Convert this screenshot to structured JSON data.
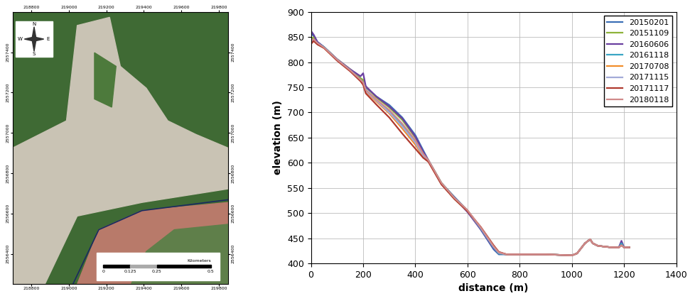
{
  "map": {
    "xticks": [
      218800,
      219000,
      219200,
      219400,
      219600,
      219800
    ],
    "yticks": [
      2556400,
      2556600,
      2556800,
      2557000,
      2557200,
      2557400
    ],
    "xlim": [
      218700,
      219850
    ],
    "ylim": [
      2556250,
      2557600
    ],
    "compass": [
      "N",
      "S",
      "W",
      "E"
    ],
    "scale_bar": {
      "unit": "Kilometers",
      "ticks": [
        0,
        0.125,
        0.25,
        0.5
      ]
    }
  },
  "chart_data": {
    "type": "line",
    "x_label": "distance (m)",
    "y_label": "elevation (m)",
    "xlim": [
      0,
      1400
    ],
    "xticks": [
      0,
      200,
      400,
      600,
      800,
      1000,
      1200,
      1400
    ],
    "ylim": [
      400,
      900
    ],
    "yticks": [
      400,
      450,
      500,
      550,
      600,
      650,
      700,
      750,
      800,
      850,
      900
    ],
    "grid": true,
    "legend": "upper right",
    "x": [
      0,
      10,
      25,
      50,
      100,
      150,
      190,
      200,
      210,
      250,
      300,
      350,
      400,
      430,
      450,
      500,
      550,
      600,
      650,
      700,
      720,
      750,
      800,
      900,
      1000,
      1020,
      1050,
      1070,
      1080,
      1100,
      1150,
      1180,
      1190,
      1200,
      1220
    ],
    "series": [
      {
        "name": "20150201",
        "color": "#3b6fb6",
        "values": [
          858,
          852,
          840,
          830,
          805,
          785,
          768,
          762,
          750,
          732,
          715,
          690,
          655,
          625,
          605,
          560,
          532,
          505,
          468,
          428,
          418,
          418,
          418,
          418,
          416,
          420,
          440,
          448,
          440,
          435,
          432,
          432,
          438,
          432,
          432
        ]
      },
      {
        "name": "20151109",
        "color": "#8db33a",
        "values": [
          845,
          850,
          838,
          830,
          806,
          786,
          768,
          765,
          752,
          730,
          710,
          685,
          650,
          620,
          605,
          560,
          530,
          505,
          470,
          432,
          420,
          418,
          418,
          418,
          416,
          420,
          440,
          448,
          440,
          435,
          432,
          432,
          436,
          432,
          432
        ]
      },
      {
        "name": "20160606",
        "color": "#6a3fa0",
        "values": [
          862,
          855,
          840,
          830,
          806,
          786,
          772,
          778,
          752,
          732,
          712,
          688,
          652,
          622,
          605,
          558,
          530,
          502,
          468,
          430,
          420,
          418,
          418,
          418,
          416,
          420,
          440,
          448,
          440,
          435,
          432,
          432,
          445,
          432,
          432
        ]
      },
      {
        "name": "20161118",
        "color": "#3aa5c4",
        "values": [
          840,
          845,
          838,
          830,
          805,
          784,
          765,
          760,
          745,
          725,
          702,
          675,
          642,
          615,
          604,
          558,
          528,
          505,
          470,
          432,
          420,
          418,
          418,
          418,
          416,
          420,
          440,
          448,
          440,
          435,
          432,
          432,
          440,
          432,
          432
        ]
      },
      {
        "name": "20170708",
        "color": "#f28e2b",
        "values": [
          838,
          843,
          836,
          828,
          804,
          783,
          764,
          758,
          742,
          722,
          698,
          668,
          636,
          612,
          603,
          558,
          528,
          504,
          472,
          435,
          422,
          418,
          418,
          418,
          416,
          420,
          440,
          448,
          440,
          435,
          432,
          432,
          436,
          432,
          432
        ]
      },
      {
        "name": "20171115",
        "color": "#a3abd8",
        "values": [
          840,
          844,
          837,
          829,
          805,
          784,
          765,
          759,
          743,
          724,
          700,
          672,
          640,
          614,
          604,
          559,
          529,
          505,
          471,
          433,
          421,
          418,
          418,
          418,
          416,
          420,
          440,
          448,
          440,
          435,
          432,
          432,
          436,
          432,
          432
        ]
      },
      {
        "name": "20171117",
        "color": "#b03a2e",
        "values": [
          836,
          842,
          835,
          828,
          803,
          782,
          762,
          755,
          738,
          716,
          690,
          658,
          628,
          610,
          602,
          557,
          528,
          504,
          473,
          436,
          423,
          418,
          418,
          418,
          416,
          420,
          440,
          448,
          440,
          435,
          432,
          432,
          436,
          432,
          432
        ]
      },
      {
        "name": "20180118",
        "color": "#d08a8a",
        "values": [
          842,
          846,
          838,
          829,
          805,
          784,
          765,
          760,
          745,
          726,
          705,
          678,
          645,
          618,
          605,
          560,
          530,
          506,
          472,
          434,
          422,
          418,
          418,
          418,
          416,
          420,
          440,
          448,
          440,
          435,
          432,
          432,
          436,
          432,
          432
        ]
      }
    ]
  }
}
